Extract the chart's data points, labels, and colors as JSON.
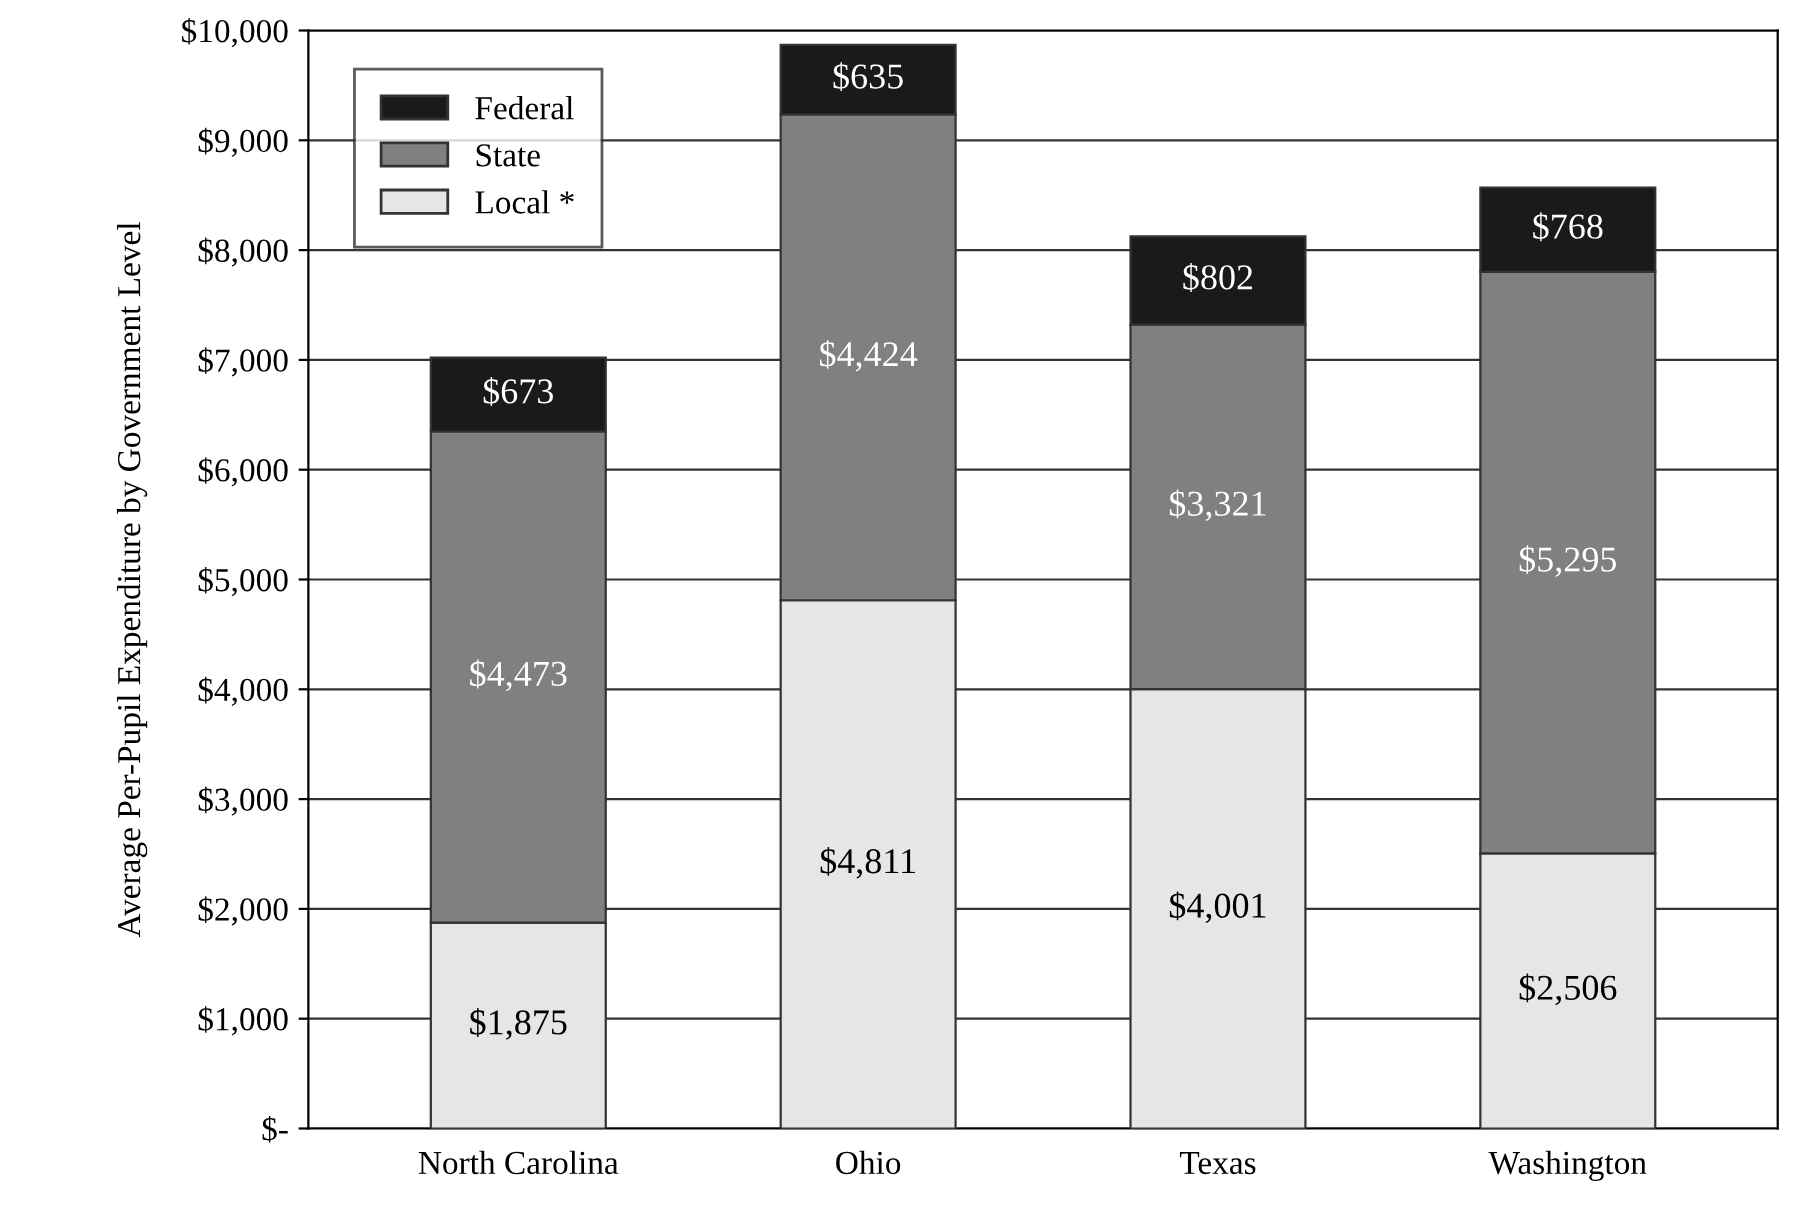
{
  "chart_data": {
    "type": "bar",
    "stacked": true,
    "ylabel": "Average Per-Pupil Expenditure by Government Level",
    "categories": [
      "North Carolina",
      "Ohio",
      "Texas",
      "Washington"
    ],
    "series": [
      {
        "name": "Local *",
        "color": "#e6e6e6",
        "values": [
          1875,
          4811,
          4001,
          2506
        ],
        "value_labels": [
          "$1,875",
          "$4,811",
          "$4,001",
          "$2,506"
        ]
      },
      {
        "name": "State",
        "color": "#808080",
        "values": [
          4473,
          4424,
          3321,
          5295
        ],
        "value_labels": [
          "$4,473",
          "$4,424",
          "$3,321",
          "$5,295"
        ]
      },
      {
        "name": "Federal",
        "color": "#1a1a1a",
        "values": [
          673,
          635,
          802,
          768
        ],
        "value_labels": [
          "$673",
          "$635",
          "$802",
          "$768"
        ]
      }
    ],
    "ylim": [
      0,
      10000
    ],
    "yticks": [
      {
        "value": 0,
        "label": "$-"
      },
      {
        "value": 1000,
        "label": "$1,000"
      },
      {
        "value": 2000,
        "label": "$2,000"
      },
      {
        "value": 3000,
        "label": "$3,000"
      },
      {
        "value": 4000,
        "label": "$4,000"
      },
      {
        "value": 5000,
        "label": "$5,000"
      },
      {
        "value": 6000,
        "label": "$6,000"
      },
      {
        "value": 7000,
        "label": "$7,000"
      },
      {
        "value": 8000,
        "label": "$8,000"
      },
      {
        "value": 9000,
        "label": "$9,000"
      },
      {
        "value": 10000,
        "label": "$10,000"
      }
    ],
    "grid": "y",
    "legend": "top left"
  }
}
